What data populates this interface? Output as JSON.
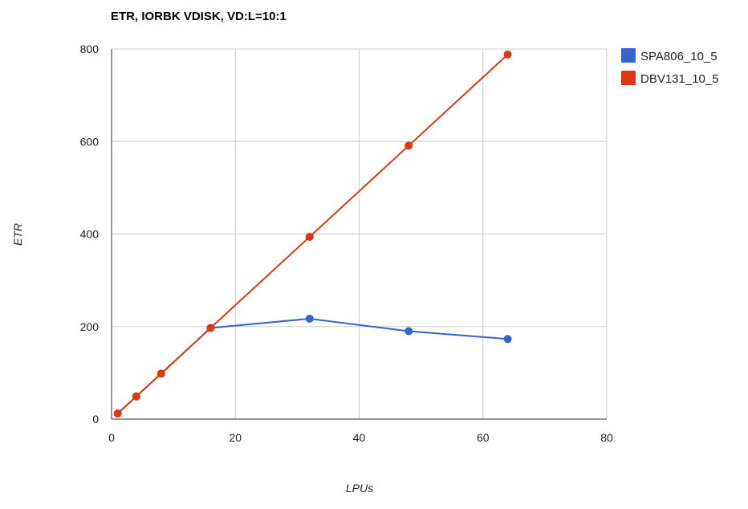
{
  "chart_data": {
    "type": "line",
    "title": "ETR, IORBK VDISK, VD:L=10:1",
    "xlabel": "LPUs",
    "ylabel": "ETR",
    "xlim": [
      0,
      80
    ],
    "ylim": [
      0,
      800
    ],
    "x_ticks": [
      "0",
      "20",
      "40",
      "60",
      "80"
    ],
    "y_ticks": [
      "0",
      "200",
      "400",
      "600",
      "800"
    ],
    "grid": true,
    "legend_position": "right",
    "series": [
      {
        "name": "SPA806_10_5",
        "color": "#3366cc",
        "x": [
          1,
          4,
          8,
          16,
          32,
          48,
          64
        ],
        "y": [
          12,
          49,
          98,
          197,
          217,
          190,
          173
        ]
      },
      {
        "name": "DBV131_10_5",
        "color": "#dc3912",
        "x": [
          1,
          4,
          8,
          16,
          32,
          48,
          64
        ],
        "y": [
          12,
          49,
          98,
          197,
          394,
          591,
          788
        ]
      }
    ]
  }
}
